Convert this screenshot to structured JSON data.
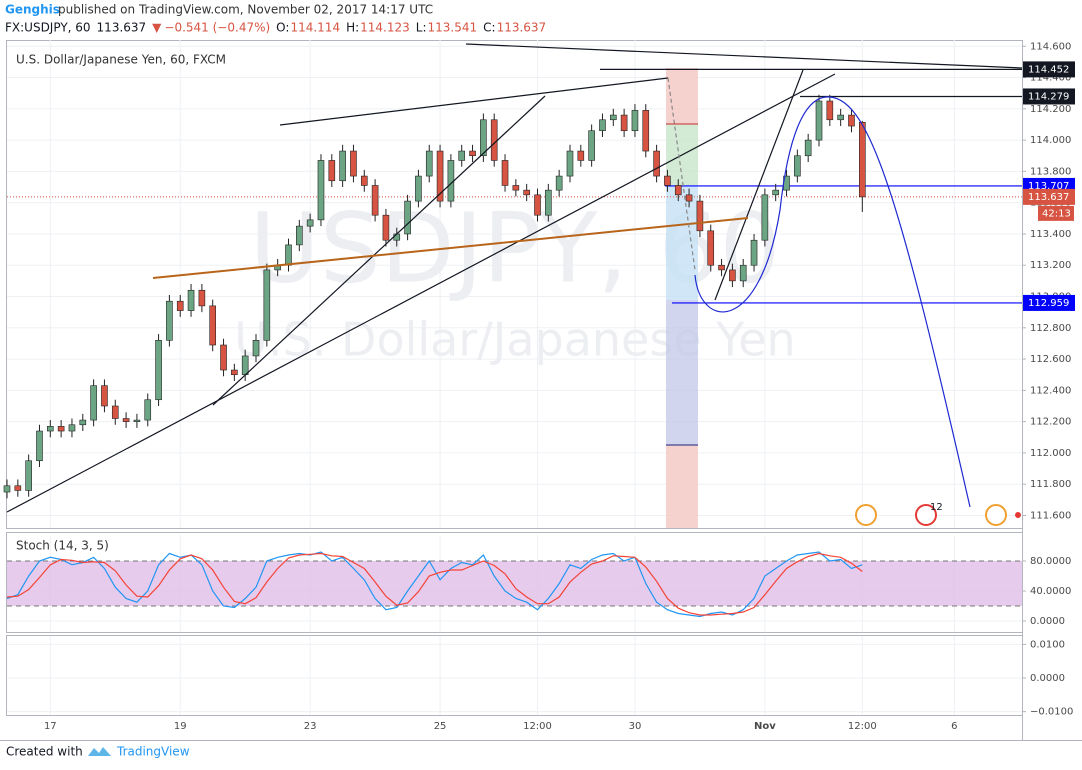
{
  "header": {
    "author": "Genghis",
    "published": "published on TradingView.com, November 02, 2017 14:17 UTC",
    "symbol": "FX:USDJPY, 60",
    "last": 113.637,
    "arrow": "▼",
    "change": "−0.541 (−0.47%)",
    "ohlc": [
      {
        "label": "O:",
        "value": 114.114
      },
      {
        "label": "H:",
        "value": 114.123
      },
      {
        "label": "L:",
        "value": 113.541
      },
      {
        "label": "C:",
        "value": 113.637
      }
    ]
  },
  "footer": {
    "created": "Created with",
    "brand": "TradingView"
  },
  "chart_data": [
    {
      "type": "candlestick",
      "title": "U.S. Dollar/Japanese Yen, 60, FXCM",
      "watermark": "USDJPY, 60",
      "watermark_sub": "U.S. Dollar/Japanese Yen",
      "up_color": "#6ba583",
      "down_color": "#d75442",
      "grid": true,
      "xlim": [
        0,
        375
      ],
      "xticks": [
        {
          "value": 16,
          "label": "17"
        },
        {
          "value": 64,
          "label": "19"
        },
        {
          "value": 112,
          "label": "23"
        },
        {
          "value": 160,
          "label": "25"
        },
        {
          "value": 196,
          "label": "12:00"
        },
        {
          "value": 232,
          "label": "30"
        },
        {
          "value": 280,
          "label": "Nov"
        },
        {
          "value": 316,
          "label": "12:00"
        },
        {
          "value": 350,
          "label": "6"
        }
      ],
      "ylim": [
        111.52,
        114.64
      ],
      "yticks": [
        {
          "value": 111.6,
          "label": "111.600"
        },
        {
          "value": 111.8,
          "label": "111.800"
        },
        {
          "value": 112.0,
          "label": "112.000"
        },
        {
          "value": 112.2,
          "label": "112.200"
        },
        {
          "value": 112.4,
          "label": "112.400"
        },
        {
          "value": 112.6,
          "label": "112.600"
        },
        {
          "value": 112.8,
          "label": "112.800"
        },
        {
          "value": 113.0,
          "label": "113.000"
        },
        {
          "value": 113.2,
          "label": "113.200"
        },
        {
          "value": 113.4,
          "label": "113.400"
        },
        {
          "value": 113.6,
          "label": "113.600"
        },
        {
          "value": 113.8,
          "label": "113.800"
        },
        {
          "value": 114.0,
          "label": "114.000"
        },
        {
          "value": 114.2,
          "label": "114.200"
        },
        {
          "value": 114.4,
          "label": "114.400"
        },
        {
          "value": 114.6,
          "label": "114.600"
        }
      ],
      "x": [
        0,
        4,
        8,
        12,
        16,
        20,
        24,
        28,
        32,
        36,
        40,
        44,
        48,
        52,
        56,
        60,
        64,
        68,
        72,
        76,
        80,
        84,
        88,
        92,
        96,
        100,
        104,
        108,
        112,
        116,
        120,
        124,
        128,
        132,
        136,
        140,
        144,
        148,
        152,
        156,
        160,
        164,
        168,
        172,
        176,
        180,
        184,
        188,
        192,
        196,
        200,
        204,
        208,
        212,
        216,
        220,
        224,
        228,
        232,
        236,
        240,
        244,
        248,
        252,
        256,
        260,
        264,
        268,
        272,
        276,
        280,
        284,
        288,
        292,
        296,
        300,
        304,
        308,
        312,
        316
      ],
      "open": [
        111.75,
        111.79,
        111.76,
        111.95,
        112.14,
        112.17,
        112.14,
        112.18,
        112.21,
        112.43,
        112.3,
        112.22,
        112.2,
        112.21,
        112.34,
        112.72,
        112.97,
        112.91,
        113.04,
        112.94,
        112.69,
        112.53,
        112.5,
        112.62,
        112.72,
        113.17,
        113.2,
        113.33,
        113.45,
        113.49,
        113.87,
        113.74,
        113.93,
        113.77,
        113.71,
        113.52,
        113.36,
        113.4,
        113.61,
        113.77,
        113.93,
        113.61,
        113.87,
        113.93,
        113.9,
        114.13,
        113.87,
        113.71,
        113.68,
        113.65,
        113.52,
        113.68,
        113.77,
        113.93,
        113.87,
        114.06,
        114.13,
        114.16,
        114.06,
        114.19,
        113.93,
        113.77,
        113.71,
        113.65,
        113.61,
        113.42,
        113.2,
        113.17,
        113.1,
        113.2,
        113.36,
        113.65,
        113.68,
        113.77,
        113.9,
        114.0,
        114.25,
        114.13,
        114.16,
        114.114
      ],
      "high": [
        111.83,
        111.83,
        111.99,
        112.18,
        112.21,
        112.21,
        112.22,
        112.25,
        112.47,
        112.47,
        112.34,
        112.26,
        112.25,
        112.38,
        112.76,
        113.01,
        113.01,
        113.08,
        113.08,
        112.98,
        112.73,
        112.57,
        112.66,
        112.76,
        113.21,
        113.24,
        113.37,
        113.49,
        113.53,
        113.91,
        113.91,
        113.97,
        113.97,
        113.81,
        113.75,
        113.56,
        113.44,
        113.65,
        113.81,
        113.97,
        113.97,
        113.91,
        113.97,
        113.97,
        114.17,
        114.17,
        113.91,
        113.75,
        113.72,
        113.69,
        113.72,
        113.81,
        113.97,
        113.97,
        114.1,
        114.17,
        114.2,
        114.2,
        114.23,
        114.23,
        113.97,
        113.81,
        113.75,
        113.69,
        113.65,
        113.46,
        113.24,
        113.21,
        113.24,
        113.4,
        113.69,
        113.72,
        113.81,
        113.94,
        114.04,
        114.29,
        114.29,
        114.2,
        114.2,
        114.123
      ],
      "low": [
        111.71,
        111.72,
        111.72,
        111.91,
        112.1,
        112.1,
        112.1,
        112.14,
        112.17,
        112.26,
        112.18,
        112.16,
        112.16,
        112.17,
        112.3,
        112.68,
        112.87,
        112.87,
        112.9,
        112.65,
        112.49,
        112.46,
        112.46,
        112.58,
        112.68,
        113.13,
        113.16,
        113.29,
        113.41,
        113.45,
        113.7,
        113.7,
        113.73,
        113.67,
        113.48,
        113.32,
        113.32,
        113.36,
        113.57,
        113.73,
        113.57,
        113.57,
        113.83,
        113.86,
        113.86,
        113.83,
        113.67,
        113.64,
        113.61,
        113.48,
        113.48,
        113.64,
        113.73,
        113.83,
        113.83,
        114.02,
        114.09,
        114.02,
        114.02,
        113.89,
        113.73,
        113.67,
        113.61,
        113.57,
        113.38,
        113.16,
        113.13,
        113.06,
        113.06,
        113.16,
        113.32,
        113.61,
        113.64,
        113.73,
        113.86,
        113.96,
        114.09,
        114.09,
        114.05,
        113.541
      ],
      "close": [
        111.79,
        111.76,
        111.95,
        112.14,
        112.17,
        112.14,
        112.18,
        112.21,
        112.43,
        112.3,
        112.22,
        112.2,
        112.21,
        112.34,
        112.72,
        112.97,
        112.91,
        113.04,
        112.94,
        112.69,
        112.53,
        112.5,
        112.62,
        112.72,
        113.17,
        113.2,
        113.33,
        113.45,
        113.49,
        113.87,
        113.74,
        113.93,
        113.77,
        113.71,
        113.52,
        113.36,
        113.4,
        113.61,
        113.77,
        113.93,
        113.61,
        113.87,
        113.93,
        113.9,
        114.13,
        113.87,
        113.71,
        113.68,
        113.65,
        113.52,
        113.68,
        113.77,
        113.93,
        113.87,
        114.06,
        114.13,
        114.16,
        114.06,
        114.19,
        113.93,
        113.77,
        113.71,
        113.65,
        113.61,
        113.42,
        113.2,
        113.17,
        113.1,
        113.2,
        113.36,
        113.65,
        113.68,
        113.77,
        113.9,
        114.0,
        114.25,
        114.13,
        114.16,
        114.09,
        113.637
      ],
      "levels": [
        {
          "price": 114.452,
          "color": "#131722"
        },
        {
          "price": 114.279,
          "color": "#131722"
        },
        {
          "price": 113.707,
          "color": "#0000ff"
        },
        {
          "price": 113.637,
          "color": "#d75442"
        },
        {
          "price": 112.959,
          "color": "#0000ff"
        }
      ],
      "countdown": "42:13",
      "event_count": "12"
    },
    {
      "type": "stoch",
      "title": "Stoch (14, 3, 5)",
      "band": [
        20,
        80
      ],
      "band_color": "#e1bee7",
      "ylim": [
        -14.7,
        114.7
      ],
      "yticks": [
        {
          "value": 0,
          "label": "0.0000"
        },
        {
          "value": 40,
          "label": "40.0000"
        },
        {
          "value": 80,
          "label": "80.0000"
        }
      ],
      "series": [
        {
          "color": "#2196f3",
          "values": [
            30,
            35,
            60,
            80,
            85,
            82,
            75,
            78,
            85,
            70,
            45,
            30,
            25,
            40,
            75,
            90,
            85,
            88,
            75,
            40,
            20,
            18,
            30,
            45,
            80,
            85,
            88,
            90,
            88,
            92,
            80,
            85,
            70,
            55,
            30,
            15,
            18,
            40,
            60,
            80,
            55,
            70,
            78,
            75,
            88,
            60,
            40,
            30,
            25,
            15,
            30,
            50,
            75,
            70,
            82,
            88,
            90,
            80,
            85,
            50,
            25,
            15,
            10,
            8,
            6,
            10,
            12,
            8,
            15,
            30,
            60,
            70,
            80,
            88,
            90,
            92,
            80,
            82,
            70,
            75
          ]
        },
        {
          "color": "#f44336",
          "values": [
            32,
            33,
            42,
            58,
            75,
            82,
            81,
            78,
            79,
            78,
            67,
            48,
            33,
            32,
            47,
            68,
            83,
            88,
            83,
            68,
            45,
            26,
            23,
            31,
            52,
            70,
            84,
            88,
            89,
            90,
            87,
            86,
            78,
            70,
            52,
            33,
            21,
            24,
            39,
            60,
            65,
            68,
            68,
            74,
            80,
            74,
            63,
            43,
            32,
            23,
            23,
            32,
            52,
            65,
            76,
            80,
            87,
            86,
            85,
            72,
            53,
            30,
            17,
            11,
            8,
            8,
            9,
            10,
            12,
            18,
            35,
            53,
            70,
            79,
            86,
            90,
            87,
            85,
            77,
            66
          ]
        }
      ]
    },
    {
      "type": "empty",
      "ylim": [
        -0.011,
        0.0125
      ],
      "yticks": [
        {
          "value": 0.01,
          "label": "0.0100"
        },
        {
          "value": 0,
          "label": "0.0000"
        },
        {
          "value": -0.01,
          "label": "−0.0100"
        }
      ]
    }
  ]
}
